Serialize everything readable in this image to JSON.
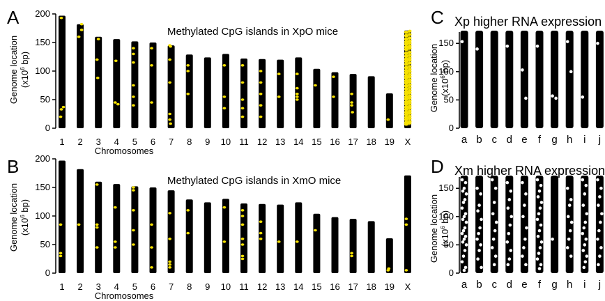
{
  "chart_data": [
    {
      "panel": "A",
      "type": "scatter",
      "title": "Methylated CpG islands in XpO mice",
      "xlabel": "Chromosomes",
      "ylabel": "Genome location",
      "yunit_pre": "(x10",
      "yunit_sup": "6",
      "yunit_post": " bp)",
      "ylim": [
        0,
        200
      ],
      "yticks": [
        0,
        50,
        100,
        150,
        200
      ],
      "categories": [
        "1",
        "2",
        "3",
        "4",
        "5",
        "6",
        "7",
        "8",
        "9",
        "10",
        "11",
        "12",
        "13",
        "14",
        "15",
        "16",
        "17",
        "18",
        "19",
        "X"
      ],
      "chrom_lengths": [
        197,
        182,
        160,
        156,
        152,
        150,
        145,
        129,
        124,
        130,
        122,
        121,
        120,
        124,
        104,
        98,
        95,
        91,
        61,
        171
      ],
      "highlight_color": "#f5e000",
      "highlights": [
        [
          20,
          33,
          37,
          193
        ],
        [
          182,
          172,
          160
        ],
        [
          156,
          120,
          88
        ],
        [
          118,
          45,
          42
        ],
        [
          140,
          130,
          115,
          75,
          55,
          40
        ],
        [
          140,
          110,
          45
        ],
        [
          145,
          143,
          120,
          80,
          25,
          15,
          8
        ],
        [
          110,
          100,
          60
        ],
        [],
        [
          110,
          55,
          35
        ],
        [
          110,
          80,
          50,
          35,
          20
        ],
        [
          100,
          80,
          60,
          40,
          20
        ],
        [
          95,
          55
        ],
        [
          95,
          70,
          60,
          55,
          50
        ],
        [
          75
        ],
        [
          90,
          55
        ],
        [
          60,
          45,
          40,
          28
        ],
        [],
        [
          15
        ],
        []
      ],
      "x_dense": {
        "range": [
          5,
          170
        ],
        "points": [
          168,
          162,
          156,
          151,
          147,
          142,
          138,
          131,
          126,
          121,
          117,
          112,
          106,
          101,
          97,
          92,
          88,
          83,
          79,
          74,
          69,
          64,
          60,
          55,
          51,
          46,
          42,
          37,
          33,
          28,
          24,
          19,
          15,
          10,
          7
        ]
      }
    },
    {
      "panel": "B",
      "type": "scatter",
      "title": "Methylated CpG islands in XmO mice",
      "xlabel": "Chromosomes",
      "ylabel": "Genome location",
      "yunit_pre": "(x10",
      "yunit_sup": "6",
      "yunit_post": " bp)",
      "ylim": [
        0,
        200
      ],
      "yticks": [
        0,
        50,
        100,
        150,
        200
      ],
      "categories": [
        "1",
        "2",
        "3",
        "4",
        "5",
        "6",
        "7",
        "8",
        "9",
        "10",
        "11",
        "12",
        "13",
        "14",
        "15",
        "16",
        "17",
        "18",
        "19",
        "X"
      ],
      "chrom_lengths": [
        197,
        182,
        160,
        156,
        152,
        150,
        145,
        129,
        124,
        130,
        122,
        121,
        120,
        124,
        104,
        98,
        95,
        91,
        61,
        171
      ],
      "highlight_color": "#f5e000",
      "highlights": [
        [
          35,
          30,
          85
        ],
        [
          85
        ],
        [
          155,
          85,
          80,
          45
        ],
        [
          115,
          55,
          45
        ],
        [
          150,
          145,
          110,
          75,
          50
        ],
        [
          85,
          45,
          10
        ],
        [
          105,
          60,
          20,
          15,
          10
        ],
        [
          110,
          70
        ],
        [],
        [
          115,
          55
        ],
        [
          110,
          100,
          85,
          60,
          50,
          30,
          25
        ],
        [
          90,
          70,
          60
        ],
        [
          55
        ],
        [
          55
        ],
        [
          75
        ],
        [],
        [
          35,
          30
        ],
        [],
        [
          8,
          5
        ],
        [
          95,
          85,
          5
        ]
      ],
      "x_dense": null
    },
    {
      "panel": "C",
      "type": "scatter",
      "title": "Xp higher RNA expression",
      "ylabel": "Genome location",
      "yunit_pre": "(x10",
      "yunit_sup": "6",
      "yunit_post": " bp)",
      "ylim": [
        0,
        170
      ],
      "yticks": [
        0,
        50,
        100,
        150
      ],
      "categories": [
        "a",
        "b",
        "c",
        "d",
        "e",
        "f",
        "g",
        "h",
        "i",
        "j"
      ],
      "highlight_color": "#ffffff",
      "highlights": [
        [
          153
        ],
        [
          140
        ],
        [],
        [
          145
        ],
        [
          103,
          53
        ],
        [
          145
        ],
        [
          57,
          53
        ],
        [
          153,
          100
        ],
        [
          55
        ],
        [
          150
        ]
      ]
    },
    {
      "panel": "D",
      "type": "scatter",
      "title": "Xm higher RNA expression",
      "ylabel": "Genome location",
      "yunit_pre": "(x10",
      "yunit_sup": "6",
      "yunit_post": " bp)",
      "ylim": [
        0,
        170
      ],
      "yticks": [
        0,
        50,
        100,
        150
      ],
      "categories": [
        "a",
        "b",
        "c",
        "d",
        "e",
        "f",
        "g",
        "h",
        "i",
        "j"
      ],
      "highlight_color": "#ffffff",
      "highlights": [
        [
          165,
          160,
          150,
          145,
          140,
          130,
          125,
          115,
          105,
          100,
          95,
          90,
          80,
          75,
          70,
          65,
          60,
          55,
          50,
          40,
          30,
          20,
          10,
          5
        ],
        [
          150,
          140,
          120,
          110,
          95,
          80,
          70,
          60,
          50,
          40,
          25,
          10
        ],
        [
          165,
          150,
          125,
          105,
          90,
          75,
          60,
          45,
          30,
          15
        ],
        [
          160,
          145,
          130,
          115,
          100,
          85,
          70,
          55,
          40,
          25,
          15
        ],
        [
          160,
          140,
          120,
          100,
          80,
          60,
          45,
          30,
          15
        ],
        [
          165,
          155,
          145,
          135,
          125,
          115,
          105,
          95,
          85,
          75,
          65,
          55,
          45,
          35,
          25,
          15,
          8
        ],
        [
          60
        ],
        [
          150,
          130,
          120,
          100,
          90,
          75,
          60,
          45,
          30
        ],
        [
          165,
          155,
          140,
          120,
          105,
          90,
          80,
          70,
          60,
          50,
          40,
          30,
          20,
          10
        ],
        [
          165,
          150,
          135,
          120,
          105,
          90,
          75,
          60,
          45,
          30,
          15
        ]
      ]
    }
  ]
}
